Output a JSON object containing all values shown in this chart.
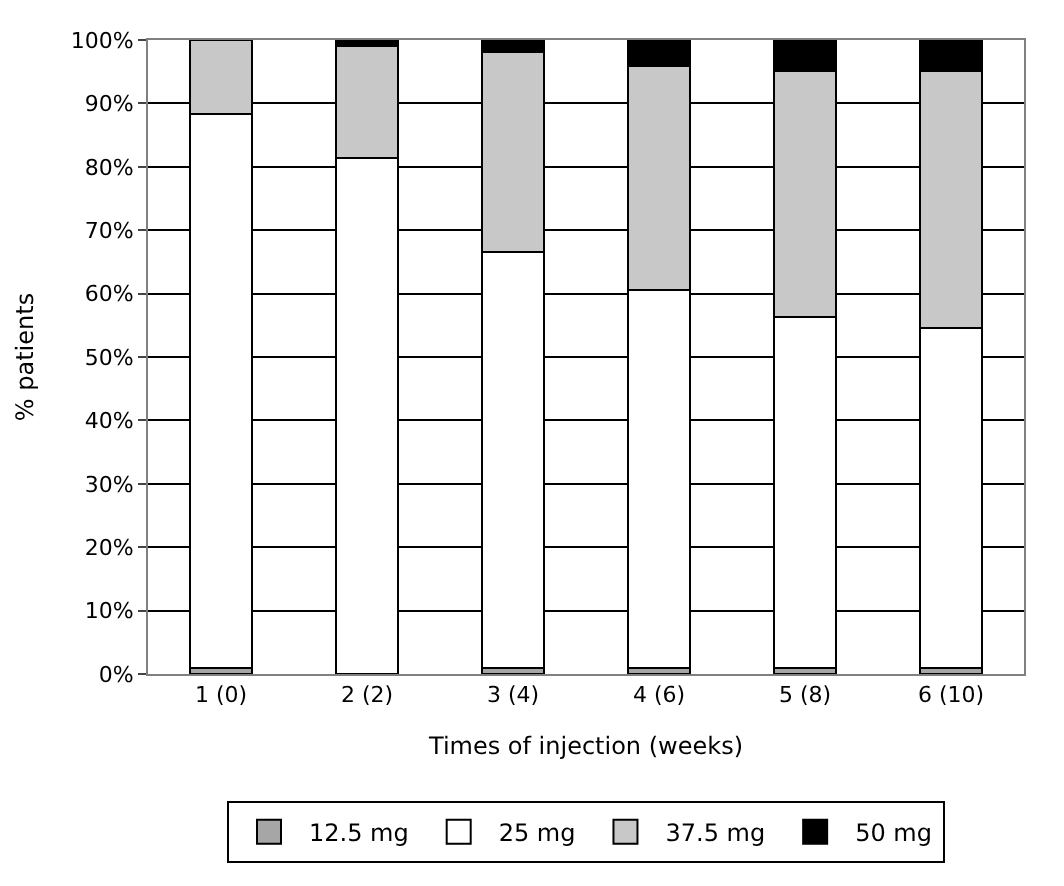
{
  "chart_data": {
    "type": "bar",
    "stacked": true,
    "xlabel": "Times of injection (weeks)",
    "ylabel": "% patients",
    "categories": [
      "1 (0)",
      "2 (2)",
      "3 (4)",
      "4 (6)",
      "5 (8)",
      "6 (10)"
    ],
    "series": [
      {
        "name": "12.5 mg",
        "color": "#a6a6a6",
        "values": [
          1.0,
          0,
          1.0,
          1.0,
          1.0,
          1.0
        ]
      },
      {
        "name": "25 mg",
        "color": "#ffffff",
        "values": [
          87.3,
          81.4,
          65.6,
          59.5,
          55.3,
          53.6
        ]
      },
      {
        "name": "37.5 mg",
        "color": "#c8c8c8",
        "values": [
          11.7,
          17.6,
          31.5,
          35.4,
          38.8,
          40.5
        ]
      },
      {
        "name": "50 mg",
        "color": "#000000",
        "values": [
          0,
          1.0,
          1.9,
          4.1,
          4.9,
          4.9
        ]
      }
    ],
    "ylim": [
      0,
      100
    ],
    "yticks": [
      {
        "value": 0,
        "label": "0%"
      },
      {
        "value": 10,
        "label": "10%"
      },
      {
        "value": 20,
        "label": "20%"
      },
      {
        "value": 30,
        "label": "30%"
      },
      {
        "value": 40,
        "label": "40%"
      },
      {
        "value": 50,
        "label": "50%"
      },
      {
        "value": 60,
        "label": "60%"
      },
      {
        "value": 70,
        "label": "70%"
      },
      {
        "value": 80,
        "label": "80%"
      },
      {
        "value": 90,
        "label": "90%"
      },
      {
        "value": 100,
        "label": "100%"
      }
    ],
    "grid": "y",
    "legend": "bottom"
  }
}
